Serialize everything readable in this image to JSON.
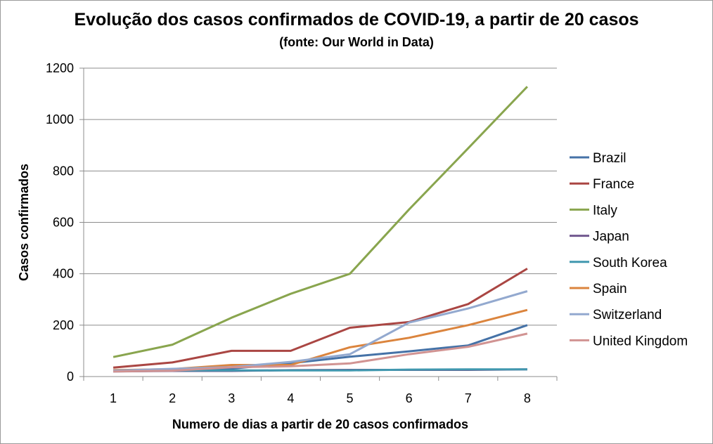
{
  "chart_data": {
    "type": "line",
    "title": "Evolução dos casos confirmados de COVID-19, a partir de 20 casos",
    "subtitle": "(fonte: Our World in Data)",
    "xlabel": "Numero de dias a partir de 20 casos confirmados",
    "ylabel": "Casos confirmados",
    "x": [
      1,
      2,
      3,
      4,
      5,
      6,
      7,
      8
    ],
    "ylim": [
      0,
      1200
    ],
    "yticks": [
      0,
      200,
      400,
      600,
      800,
      1000,
      1200
    ],
    "grid": "horizontal",
    "legend_position": "right",
    "series": [
      {
        "name": "Brazil",
        "color": "#4572a7",
        "values": [
          25,
          25,
          31,
          52,
          77,
          98,
          121,
          200
        ]
      },
      {
        "name": "France",
        "color": "#aa4643",
        "values": [
          35,
          55,
          100,
          100,
          190,
          212,
          282,
          420
        ]
      },
      {
        "name": "Italy",
        "color": "#89a54e",
        "values": [
          76,
          124,
          229,
          322,
          400,
          650,
          888,
          1128
        ]
      },
      {
        "name": "Japan",
        "color": "#71588f",
        "values": [
          20,
          22,
          22,
          25,
          26,
          26,
          26,
          28
        ]
      },
      {
        "name": "South Korea",
        "color": "#4198af",
        "values": [
          23,
          24,
          24,
          24,
          24,
          27,
          28,
          28
        ]
      },
      {
        "name": "Spain",
        "color": "#db843d",
        "values": [
          25,
          29,
          45,
          45,
          114,
          151,
          200,
          259
        ]
      },
      {
        "name": "Switzerland",
        "color": "#93a9cf",
        "values": [
          23,
          30,
          37,
          57,
          87,
          210,
          265,
          332
        ]
      },
      {
        "name": "United Kingdom",
        "color": "#d19392",
        "values": [
          20,
          23,
          36,
          40,
          51,
          87,
          116,
          167
        ]
      }
    ]
  }
}
